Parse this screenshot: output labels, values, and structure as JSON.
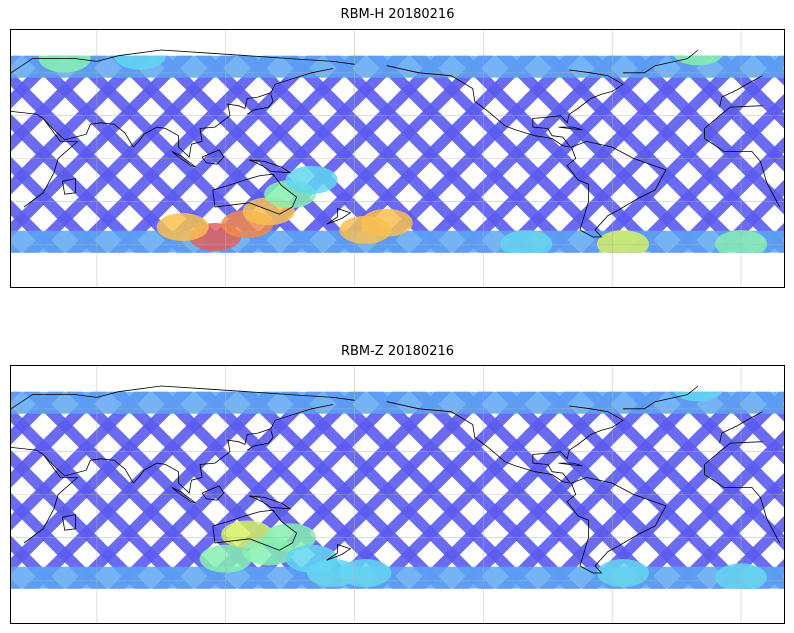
{
  "panels": [
    {
      "title": "RBM-H 20180216",
      "colormap": "jet",
      "swath_colors": [
        "#5b5bf0",
        "#6a7cf4",
        "#5aa6f4",
        "#63d6f0",
        "#86f0b0",
        "#d6f064",
        "#f8c050",
        "#f08a4c",
        "#e0605c"
      ],
      "hotspots": [
        {
          "lon": 115,
          "lat": -55,
          "level": 0.95
        },
        {
          "lon": 130,
          "lat": -46,
          "level": 0.85
        },
        {
          "lon": 140,
          "lat": -37,
          "level": 0.7
        },
        {
          "lon": 150,
          "lat": -25,
          "level": 0.5
        },
        {
          "lon": 160,
          "lat": -15,
          "level": 0.4
        },
        {
          "lon": 100,
          "lat": -48,
          "level": 0.7
        },
        {
          "lon": -175,
          "lat": -50,
          "level": 0.8
        },
        {
          "lon": -165,
          "lat": -45,
          "level": 0.7
        },
        {
          "lon": -55,
          "lat": -60,
          "level": 0.6
        },
        {
          "lon": 0,
          "lat": -60,
          "level": 0.45
        },
        {
          "lon": -100,
          "lat": -60,
          "level": 0.4
        },
        {
          "lon": -20,
          "lat": 75,
          "level": 0.55
        },
        {
          "lon": 45,
          "lat": 70,
          "level": 0.45
        },
        {
          "lon": 80,
          "lat": 72,
          "level": 0.4
        }
      ]
    },
    {
      "title": "RBM-Z 20180216",
      "colormap": "jet",
      "swath_colors": [
        "#5b5bf0",
        "#6a7cf4",
        "#5aa6f4",
        "#63d6f0",
        "#86f0b0",
        "#d6f064",
        "#f8c050",
        "#f08a4c",
        "#e0605c"
      ],
      "hotspots": [
        {
          "lon": 130,
          "lat": -28,
          "level": 0.65
        },
        {
          "lon": 140,
          "lat": -40,
          "level": 0.55
        },
        {
          "lon": 150,
          "lat": -30,
          "level": 0.5
        },
        {
          "lon": 160,
          "lat": -45,
          "level": 0.4
        },
        {
          "lon": 120,
          "lat": -45,
          "level": 0.45
        },
        {
          "lon": 170,
          "lat": -55,
          "level": 0.4
        },
        {
          "lon": -175,
          "lat": -55,
          "level": 0.4
        },
        {
          "lon": -55,
          "lat": -55,
          "level": 0.4
        },
        {
          "lon": 0,
          "lat": -58,
          "level": 0.35
        },
        {
          "lon": -20,
          "lat": 75,
          "level": 0.35
        }
      ]
    }
  ],
  "coastline_color": "#000000",
  "grid": true
}
